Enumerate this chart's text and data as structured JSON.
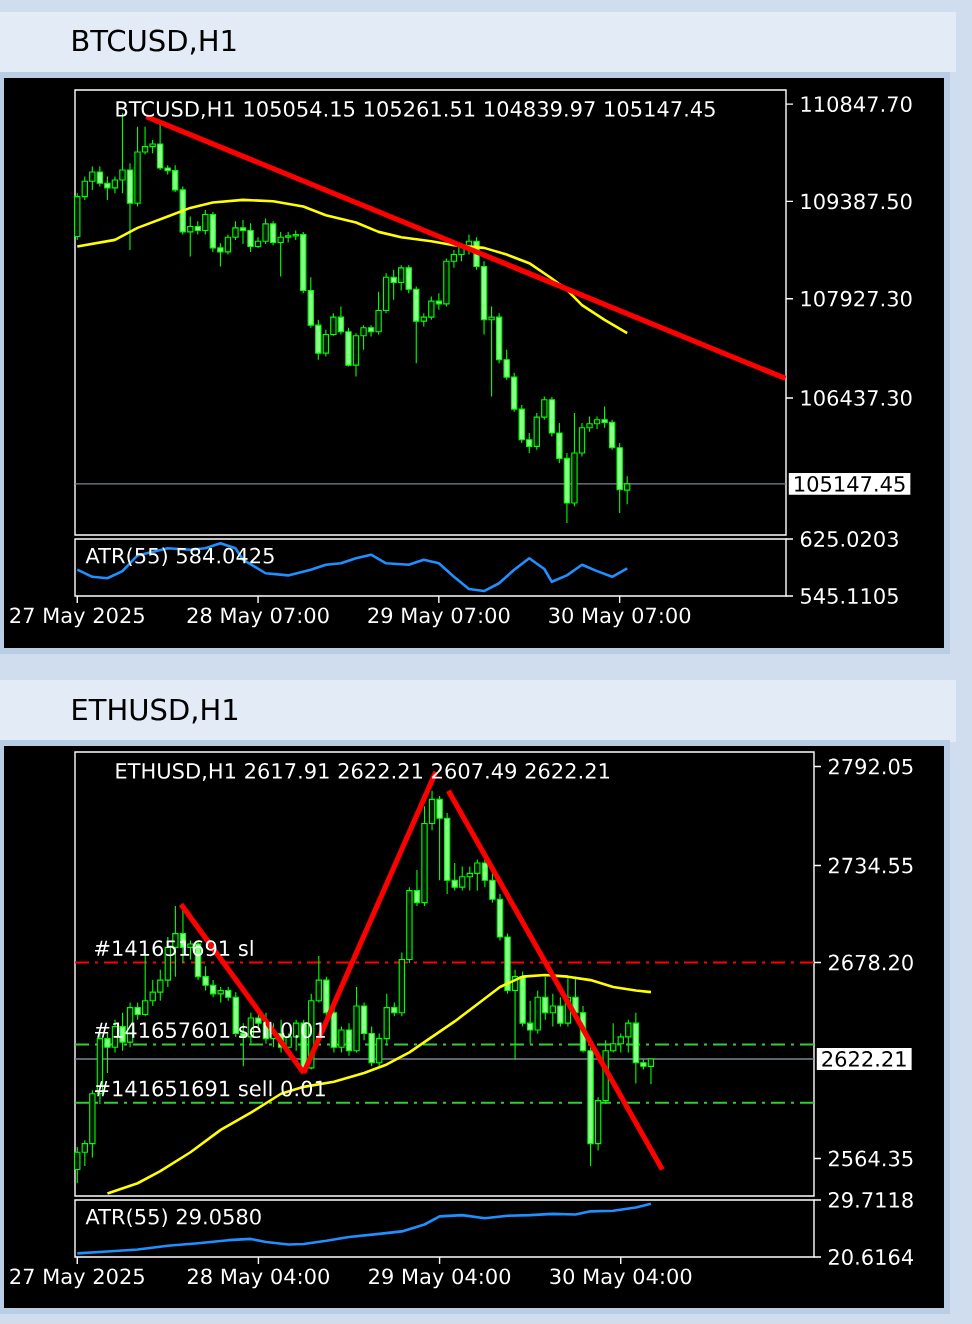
{
  "chart_data": [
    {
      "type": "candlestick",
      "title": "BTCUSD,H1",
      "subtitle": "BTCUSD,H1 105054.15 105261.51 104839.97 105147.45",
      "xlim": [
        "2025-05-27T06:42",
        "2025-05-31T05:05"
      ],
      "ylim": [
        104380,
        111060
      ],
      "yticks": [
        {
          "value": 110847.7,
          "label": "110847.70"
        },
        {
          "value": 109387.5,
          "label": "109387.50"
        },
        {
          "value": 107927.3,
          "label": "107927.30"
        },
        {
          "value": 106437.3,
          "label": "106437.30"
        }
      ],
      "tick_labels": "y",
      "ref_lines": [
        {
          "axis": "y",
          "value": 105147.45,
          "label": "105147.45",
          "color": "#778899",
          "line_style": "solid"
        }
      ],
      "series": [
        {
          "color": "#00ff00",
          "x": [
            "2025-05-27T07:00",
            "2025-05-27T08:00",
            "2025-05-27T09:00",
            "2025-05-27T10:00",
            "2025-05-27T11:00",
            "2025-05-27T12:00",
            "2025-05-27T13:00",
            "2025-05-27T14:00",
            "2025-05-27T15:00",
            "2025-05-27T16:00",
            "2025-05-27T17:00",
            "2025-05-27T18:00",
            "2025-05-27T19:00",
            "2025-05-27T20:00",
            "2025-05-27T21:00",
            "2025-05-27T22:00",
            "2025-05-27T23:00",
            "2025-05-28T00:00",
            "2025-05-28T01:00",
            "2025-05-28T02:00",
            "2025-05-28T03:00",
            "2025-05-28T04:00",
            "2025-05-28T05:00",
            "2025-05-28T06:00",
            "2025-05-28T07:00",
            "2025-05-28T08:00",
            "2025-05-28T09:00",
            "2025-05-28T10:00",
            "2025-05-28T11:00",
            "2025-05-28T12:00",
            "2025-05-28T13:00",
            "2025-05-28T14:00",
            "2025-05-28T15:00",
            "2025-05-28T16:00",
            "2025-05-28T17:00",
            "2025-05-28T18:00",
            "2025-05-28T19:00",
            "2025-05-28T20:00",
            "2025-05-28T21:00",
            "2025-05-28T22:00",
            "2025-05-28T23:00",
            "2025-05-29T00:00",
            "2025-05-29T01:00",
            "2025-05-29T02:00",
            "2025-05-29T03:00",
            "2025-05-29T04:00",
            "2025-05-29T05:00",
            "2025-05-29T06:00",
            "2025-05-29T07:00",
            "2025-05-29T08:00",
            "2025-05-29T09:00",
            "2025-05-29T10:00",
            "2025-05-29T11:00",
            "2025-05-29T12:00",
            "2025-05-29T13:00",
            "2025-05-29T14:00",
            "2025-05-29T15:00",
            "2025-05-29T16:00",
            "2025-05-29T17:00",
            "2025-05-29T18:00",
            "2025-05-29T19:00",
            "2025-05-29T20:00",
            "2025-05-29T21:00",
            "2025-05-29T22:00",
            "2025-05-29T23:00",
            "2025-05-30T00:00",
            "2025-05-30T01:00",
            "2025-05-30T02:00",
            "2025-05-30T03:00",
            "2025-05-30T04:00",
            "2025-05-30T05:00",
            "2025-05-30T06:00",
            "2025-05-30T07:00",
            "2025-05-30T08:00"
          ],
          "ohlc": [
            [
              108860,
              109510,
              108810,
              109460
            ],
            [
              109460,
              109760,
              109410,
              109690
            ],
            [
              109690,
              109910,
              109560,
              109830
            ],
            [
              109830,
              109910,
              109610,
              109660
            ],
            [
              109660,
              109760,
              109410,
              109590
            ],
            [
              109590,
              109760,
              109510,
              109710
            ],
            [
              109710,
              110710,
              109510,
              109860
            ],
            [
              109860,
              109960,
              108660,
              109360
            ],
            [
              109360,
              110510,
              109310,
              110130
            ],
            [
              110130,
              110510,
              110090,
              110210
            ],
            [
              110210,
              110310,
              110110,
              110250
            ],
            [
              110250,
              110610,
              109860,
              109890
            ],
            [
              109890,
              109930,
              109790,
              109850
            ],
            [
              109850,
              109930,
              109530,
              109560
            ],
            [
              109560,
              109610,
              108890,
              108930
            ],
            [
              108930,
              109160,
              108560,
              109010
            ],
            [
              109010,
              109090,
              108890,
              108950
            ],
            [
              108950,
              109260,
              108890,
              109190
            ],
            [
              109190,
              109230,
              108630,
              108690
            ],
            [
              108690,
              108760,
              108410,
              108630
            ],
            [
              108630,
              108890,
              108590,
              108850
            ],
            [
              108850,
              109090,
              108810,
              108990
            ],
            [
              108990,
              109110,
              108750,
              108950
            ],
            [
              108950,
              109060,
              108630,
              108710
            ],
            [
              108710,
              108850,
              108690,
              108790
            ],
            [
              108790,
              109130,
              108750,
              109050
            ],
            [
              109050,
              109090,
              108730,
              108770
            ],
            [
              108770,
              108930,
              108260,
              108850
            ],
            [
              108850,
              108930,
              108770,
              108870
            ],
            [
              108870,
              108950,
              108810,
              108890
            ],
            [
              108890,
              108930,
              108010,
              108050
            ],
            [
              108050,
              108250,
              107490,
              107530
            ],
            [
              107530,
              107610,
              107010,
              107110
            ],
            [
              107110,
              107460,
              107060,
              107390
            ],
            [
              107390,
              107710,
              107370,
              107650
            ],
            [
              107650,
              107810,
              107390,
              107430
            ],
            [
              107430,
              107490,
              106910,
              106930
            ],
            [
              106930,
              107410,
              106760,
              107370
            ],
            [
              107370,
              107530,
              107160,
              107490
            ],
            [
              107490,
              107530,
              107360,
              107430
            ],
            [
              107430,
              108030,
              107390,
              107750
            ],
            [
              107750,
              108310,
              107710,
              108250
            ],
            [
              108250,
              108360,
              107910,
              108170
            ],
            [
              108170,
              108430,
              108050,
              108390
            ],
            [
              108390,
              108430,
              108010,
              108070
            ],
            [
              108070,
              108110,
              106960,
              107590
            ],
            [
              107590,
              107710,
              107510,
              107650
            ],
            [
              107650,
              107960,
              107610,
              107890
            ],
            [
              107890,
              108010,
              107760,
              107850
            ],
            [
              107850,
              108530,
              107810,
              108490
            ],
            [
              108490,
              108660,
              108390,
              108590
            ],
            [
              108590,
              108760,
              108490,
              108710
            ],
            [
              108710,
              108890,
              108590,
              108790
            ],
            [
              108790,
              108850,
              108360,
              108410
            ],
            [
              108410,
              108490,
              107390,
              107610
            ],
            [
              107610,
              107810,
              106460,
              107650
            ],
            [
              107650,
              107710,
              106960,
              107010
            ],
            [
              107010,
              107160,
              106710,
              106750
            ],
            [
              106750,
              106810,
              106230,
              106270
            ],
            [
              106270,
              106330,
              105760,
              105810
            ],
            [
              105810,
              105910,
              105610,
              105710
            ],
            [
              105710,
              106210,
              105660,
              106150
            ],
            [
              106150,
              106460,
              106110,
              106410
            ],
            [
              106410,
              106450,
              105860,
              105910
            ],
            [
              105910,
              106060,
              105460,
              105530
            ],
            [
              105530,
              105610,
              104560,
              104860
            ],
            [
              104860,
              106210,
              104810,
              105610
            ],
            [
              105610,
              106060,
              105560,
              105990
            ],
            [
              105990,
              106160,
              105930,
              106050
            ],
            [
              106050,
              106160,
              105970,
              106110
            ],
            [
              106110,
              106310,
              105990,
              106070
            ],
            [
              106070,
              106110,
              105660,
              105690
            ],
            [
              105690,
              105760,
              104710,
              105060
            ],
            [
              105054.15,
              105261.51,
              104839.97,
              105147.45
            ]
          ]
        },
        {
          "type": "line",
          "color": "#ffff00",
          "x": [
            "2025-05-27T07:00",
            "2025-05-27T12:00",
            "2025-05-27T15:00",
            "2025-05-27T19:00",
            "2025-05-27T22:00",
            "2025-05-28T01:00",
            "2025-05-28T05:00",
            "2025-05-28T09:00",
            "2025-05-28T13:00",
            "2025-05-28T16:00",
            "2025-05-28T20:00",
            "2025-05-28T23:00",
            "2025-05-29T02:00",
            "2025-05-29T06:00",
            "2025-05-29T09:00",
            "2025-05-29T13:00",
            "2025-05-29T16:00",
            "2025-05-29T19:00",
            "2025-05-29T22:00",
            "2025-05-30T00:00",
            "2025-05-30T02:00",
            "2025-05-30T05:00",
            "2025-05-30T08:00"
          ],
          "values": [
            108710,
            108810,
            108990,
            109160,
            109290,
            109370,
            109410,
            109390,
            109310,
            109180,
            109070,
            108930,
            108850,
            108790,
            108730,
            108690,
            108590,
            108460,
            108230,
            108060,
            107830,
            107610,
            107410
          ]
        },
        {
          "type": "line",
          "color": "#ff0000",
          "x": [
            "2025-05-27T16:10",
            "2025-05-31T05:00"
          ],
          "values": [
            110660,
            106730
          ]
        }
      ]
    },
    {
      "type": "line",
      "xlim": [
        "2025-05-27T06:42",
        "2025-05-31T05:05"
      ],
      "xticks": [
        {
          "value": "2025-05-27T07:00",
          "label": "27 May 2025"
        },
        {
          "value": "2025-05-28T07:00",
          "label": "28 May 07:00"
        },
        {
          "value": "2025-05-29T07:00",
          "label": "29 May 07:00"
        },
        {
          "value": "2025-05-30T07:00",
          "label": "30 May 07:00"
        }
      ],
      "ylim": [
        545.1105,
        625.0203
      ],
      "yticks": [
        625.0203,
        545.1105
      ],
      "series": [
        {
          "name": "ATR(55) 584.0425",
          "color": "#1e90ff",
          "x": [
            "2025-05-27T07:00",
            "2025-05-27T09:00",
            "2025-05-27T11:00",
            "2025-05-27T13:00",
            "2025-05-27T15:00",
            "2025-05-27T19:00",
            "2025-05-27T22:00",
            "2025-05-28T00:00",
            "2025-05-28T02:00",
            "2025-05-28T04:00",
            "2025-05-28T05:00",
            "2025-05-28T08:00",
            "2025-05-28T11:00",
            "2025-05-28T14:00",
            "2025-05-28T16:00",
            "2025-05-28T18:00",
            "2025-05-28T20:00",
            "2025-05-28T22:00",
            "2025-05-29T00:00",
            "2025-05-29T03:00",
            "2025-05-29T05:00",
            "2025-05-29T07:00",
            "2025-05-29T09:00",
            "2025-05-29T11:00",
            "2025-05-29T13:00",
            "2025-05-29T15:00",
            "2025-05-29T17:00",
            "2025-05-29T19:00",
            "2025-05-29T21:00",
            "2025-05-29T22:00",
            "2025-05-30T00:00",
            "2025-05-30T02:00",
            "2025-05-30T04:00",
            "2025-05-30T06:00",
            "2025-05-30T08:00"
          ],
          "values": [
            582,
            572,
            570,
            580,
            602,
            612,
            610,
            612,
            619,
            612,
            596,
            577,
            574,
            582,
            589,
            591,
            598,
            603,
            591,
            589,
            596,
            591,
            572,
            555,
            552,
            563,
            582,
            598,
            583,
            565,
            574,
            589,
            580,
            572,
            584
          ]
        }
      ]
    },
    {
      "type": "candlestick",
      "title": "ETHUSD,H1",
      "subtitle": "ETHUSD,H1 2617.91 2622.21 2607.49 2622.21",
      "xlim": [
        "2025-05-27T03:42",
        "2025-05-31T05:36"
      ],
      "ylim": [
        2542.6,
        2800.5
      ],
      "yticks": [
        2792.05,
        2734.55,
        {
          "value": 2678.2,
          "label": "2678.20"
        },
        2564.35
      ],
      "tick_labels": "y",
      "ref_lines": [
        {
          "axis": "y",
          "value": 2678.2,
          "label": "#141651691 sl",
          "color": "#ff0000",
          "line_style": "dashed"
        },
        {
          "axis": "y",
          "value": 2630.6,
          "label": "#141657601 sell 0.01",
          "color": "#32cd32",
          "line_style": "dashed"
        },
        {
          "axis": "y",
          "value": 2596.7,
          "label": "#141651691 sell 0.01",
          "color": "#32cd32",
          "line_style": "dashed"
        },
        {
          "axis": "y",
          "value": 2622.21,
          "label": "2622.21",
          "color": "#778899",
          "line_style": "solid"
        }
      ],
      "series": [
        {
          "color": "#00ff00",
          "x": [
            "2025-05-27T04:00",
            "2025-05-27T05:00",
            "2025-05-27T06:00",
            "2025-05-27T07:00",
            "2025-05-27T08:00",
            "2025-05-27T09:00",
            "2025-05-27T10:00",
            "2025-05-27T11:00",
            "2025-05-27T12:00",
            "2025-05-27T13:00",
            "2025-05-27T14:00",
            "2025-05-27T15:00",
            "2025-05-27T16:00",
            "2025-05-27T17:00",
            "2025-05-27T18:00",
            "2025-05-27T19:00",
            "2025-05-27T20:00",
            "2025-05-27T21:00",
            "2025-05-27T22:00",
            "2025-05-27T23:00",
            "2025-05-28T00:00",
            "2025-05-28T01:00",
            "2025-05-28T02:00",
            "2025-05-28T03:00",
            "2025-05-28T04:00",
            "2025-05-28T05:00",
            "2025-05-28T06:00",
            "2025-05-28T07:00",
            "2025-05-28T08:00",
            "2025-05-28T09:00",
            "2025-05-28T10:00",
            "2025-05-28T11:00",
            "2025-05-28T12:00",
            "2025-05-28T13:00",
            "2025-05-28T14:00",
            "2025-05-28T15:00",
            "2025-05-28T16:00",
            "2025-05-28T17:00",
            "2025-05-28T18:00",
            "2025-05-28T19:00",
            "2025-05-28T20:00",
            "2025-05-28T21:00",
            "2025-05-28T22:00",
            "2025-05-28T23:00",
            "2025-05-29T00:00",
            "2025-05-29T01:00",
            "2025-05-29T02:00",
            "2025-05-29T03:00",
            "2025-05-29T04:00",
            "2025-05-29T05:00",
            "2025-05-29T06:00",
            "2025-05-29T07:00",
            "2025-05-29T08:00",
            "2025-05-29T09:00",
            "2025-05-29T10:00",
            "2025-05-29T11:00",
            "2025-05-29T12:00",
            "2025-05-29T13:00",
            "2025-05-29T14:00",
            "2025-05-29T15:00",
            "2025-05-29T16:00",
            "2025-05-29T17:00",
            "2025-05-29T18:00",
            "2025-05-29T19:00",
            "2025-05-29T20:00",
            "2025-05-29T21:00",
            "2025-05-29T22:00",
            "2025-05-29T23:00",
            "2025-05-30T00:00",
            "2025-05-30T01:00",
            "2025-05-30T02:00",
            "2025-05-30T03:00",
            "2025-05-30T04:00",
            "2025-05-30T05:00",
            "2025-05-30T06:00",
            "2025-05-30T07:00",
            "2025-05-30T08:00"
          ],
          "ohlc": [
            [
              2558,
              2571,
              2550,
              2568
            ],
            [
              2568,
              2575,
              2560,
              2573
            ],
            [
              2573,
              2604,
              2565,
              2602
            ],
            [
              2602,
              2637,
              2596,
              2634
            ],
            [
              2634,
              2637,
              2614,
              2629
            ],
            [
              2629,
              2645,
              2626,
              2641
            ],
            [
              2641,
              2649,
              2627,
              2632
            ],
            [
              2632,
              2655,
              2629,
              2652
            ],
            [
              2652,
              2655,
              2645,
              2648
            ],
            [
              2648,
              2684,
              2647,
              2656
            ],
            [
              2656,
              2668,
              2653,
              2661
            ],
            [
              2661,
              2674,
              2656,
              2668
            ],
            [
              2668,
              2693,
              2664,
              2687
            ],
            [
              2687,
              2711,
              2670,
              2695
            ],
            [
              2695,
              2709,
              2678,
              2687
            ],
            [
              2687,
              2691,
              2680,
              2689
            ],
            [
              2689,
              2691,
              2668,
              2670
            ],
            [
              2670,
              2676,
              2662,
              2665
            ],
            [
              2665,
              2668,
              2658,
              2660
            ],
            [
              2660,
              2664,
              2655,
              2662
            ],
            [
              2662,
              2664,
              2656,
              2658
            ],
            [
              2658,
              2661,
              2635,
              2637
            ],
            [
              2637,
              2643,
              2618,
              2635
            ],
            [
              2635,
              2649,
              2631,
              2646
            ],
            [
              2646,
              2649,
              2639,
              2643
            ],
            [
              2643,
              2649,
              2631,
              2634
            ],
            [
              2634,
              2643,
              2629,
              2637
            ],
            [
              2637,
              2645,
              2626,
              2629
            ],
            [
              2629,
              2637,
              2624,
              2635
            ],
            [
              2635,
              2645,
              2627,
              2643
            ],
            [
              2643,
              2645,
              2614,
              2617
            ],
            [
              2617,
              2660,
              2616,
              2656
            ],
            [
              2656,
              2682,
              2655,
              2668
            ],
            [
              2668,
              2670,
              2645,
              2649
            ],
            [
              2649,
              2655,
              2626,
              2629
            ],
            [
              2629,
              2641,
              2626,
              2639
            ],
            [
              2639,
              2643,
              2624,
              2627
            ],
            [
              2627,
              2664,
              2626,
              2653
            ],
            [
              2653,
              2655,
              2633,
              2637
            ],
            [
              2637,
              2641,
              2618,
              2620
            ],
            [
              2620,
              2637,
              2618,
              2634
            ],
            [
              2634,
              2660,
              2631,
              2652
            ],
            [
              2652,
              2655,
              2647,
              2649
            ],
            [
              2649,
              2684,
              2647,
              2680
            ],
            [
              2680,
              2722,
              2678,
              2720
            ],
            [
              2720,
              2732,
              2711,
              2713
            ],
            [
              2713,
              2769,
              2711,
              2759
            ],
            [
              2759,
              2778,
              2755,
              2773
            ],
            [
              2773,
              2775,
              2726,
              2762
            ],
            [
              2762,
              2765,
              2718,
              2726
            ],
            [
              2726,
              2736,
              2720,
              2722
            ],
            [
              2722,
              2734,
              2720,
              2728
            ],
            [
              2728,
              2734,
              2720,
              2730
            ],
            [
              2730,
              2738,
              2720,
              2736
            ],
            [
              2736,
              2738,
              2722,
              2726
            ],
            [
              2726,
              2732,
              2713,
              2715
            ],
            [
              2715,
              2718,
              2691,
              2693
            ],
            [
              2693,
              2695,
              2660,
              2662
            ],
            [
              2662,
              2674,
              2622,
              2670
            ],
            [
              2670,
              2673,
              2641,
              2643
            ],
            [
              2643,
              2656,
              2631,
              2639
            ],
            [
              2639,
              2662,
              2637,
              2658
            ],
            [
              2658,
              2670,
              2645,
              2649
            ],
            [
              2649,
              2660,
              2641,
              2653
            ],
            [
              2653,
              2658,
              2641,
              2643
            ],
            [
              2643,
              2670,
              2641,
              2658
            ],
            [
              2658,
              2670,
              2645,
              2649
            ],
            [
              2649,
              2653,
              2626,
              2627
            ],
            [
              2627,
              2629,
              2560,
              2573
            ],
            [
              2573,
              2600,
              2569,
              2598
            ],
            [
              2598,
              2633,
              2596,
              2627
            ],
            [
              2627,
              2643,
              2626,
              2631
            ],
            [
              2631,
              2637,
              2626,
              2635
            ],
            [
              2635,
              2645,
              2626,
              2643
            ],
            [
              2643,
              2649,
              2608,
              2620
            ],
            [
              2620,
              2622,
              2616,
              2618
            ],
            [
              2617.91,
              2622.21,
              2607.49,
              2622.21
            ]
          ]
        },
        {
          "type": "line",
          "color": "#ffff00",
          "x": [
            "2025-05-27T08:00",
            "2025-05-27T12:00",
            "2025-05-27T15:00",
            "2025-05-27T19:00",
            "2025-05-27T23:00",
            "2025-05-28T03:00",
            "2025-05-28T07:00",
            "2025-05-28T10:00",
            "2025-05-28T14:00",
            "2025-05-28T18:00",
            "2025-05-28T21:00",
            "2025-05-29T00:00",
            "2025-05-29T03:00",
            "2025-05-29T06:00",
            "2025-05-29T09:00",
            "2025-05-29T12:00",
            "2025-05-29T15:00",
            "2025-05-29T18:00",
            "2025-05-29T21:00",
            "2025-05-30T00:00",
            "2025-05-30T03:00",
            "2025-05-30T06:00",
            "2025-05-30T08:00"
          ],
          "values": [
            2544,
            2550,
            2557,
            2568,
            2581,
            2591,
            2602,
            2606,
            2609,
            2614,
            2619,
            2626,
            2635,
            2644,
            2654,
            2664,
            2670,
            2671,
            2670,
            2668,
            2664,
            2662,
            2661
          ]
        },
        {
          "type": "line",
          "color": "#ff0000",
          "x": [
            "2025-05-27T17:45",
            "2025-05-28T10:00"
          ],
          "values": [
            2712,
            2614
          ]
        },
        {
          "type": "line",
          "color": "#ff0000",
          "x": [
            "2025-05-28T10:00",
            "2025-05-29T03:30"
          ],
          "values": [
            2614,
            2789
          ]
        },
        {
          "type": "line",
          "color": "#ff0000",
          "x": [
            "2025-05-29T05:10",
            "2025-05-30T09:30"
          ],
          "values": [
            2778,
            2558
          ]
        }
      ]
    },
    {
      "type": "line",
      "xlim": [
        "2025-05-27T03:42",
        "2025-05-31T05:36"
      ],
      "xticks": [
        {
          "value": "2025-05-27T04:00",
          "label": "27 May 2025"
        },
        {
          "value": "2025-05-28T04:00",
          "label": "28 May 04:00"
        },
        {
          "value": "2025-05-29T04:00",
          "label": "29 May 04:00"
        },
        {
          "value": "2025-05-30T04:00",
          "label": "30 May 04:00"
        }
      ],
      "ylim": [
        20.6164,
        29.7118
      ],
      "yticks": [
        29.7118,
        20.6164
      ],
      "series": [
        {
          "name": "ATR(55) 29.0580",
          "color": "#1e90ff",
          "x": [
            "2025-05-27T04:00",
            "2025-05-27T08:00",
            "2025-05-27T12:00",
            "2025-05-27T16:00",
            "2025-05-27T20:00",
            "2025-05-28T00:00",
            "2025-05-28T03:00",
            "2025-05-28T05:00",
            "2025-05-28T08:00",
            "2025-05-28T10:00",
            "2025-05-28T13:00",
            "2025-05-28T16:00",
            "2025-05-28T20:00",
            "2025-05-28T23:00",
            "2025-05-29T02:00",
            "2025-05-29T04:00",
            "2025-05-29T07:00",
            "2025-05-29T10:00",
            "2025-05-29T13:00",
            "2025-05-29T16:00",
            "2025-05-29T19:00",
            "2025-05-29T22:00",
            "2025-05-30T00:00",
            "2025-05-30T03:00",
            "2025-05-30T06:00",
            "2025-05-30T08:00"
          ],
          "values": [
            21.2,
            21.5,
            21.8,
            22.4,
            22.8,
            23.3,
            23.5,
            23.0,
            22.6,
            22.7,
            23.2,
            23.8,
            24.3,
            24.7,
            25.8,
            27.1,
            27.3,
            26.8,
            27.2,
            27.3,
            27.5,
            27.4,
            27.9,
            28.0,
            28.5,
            29.1
          ]
        }
      ]
    }
  ]
}
